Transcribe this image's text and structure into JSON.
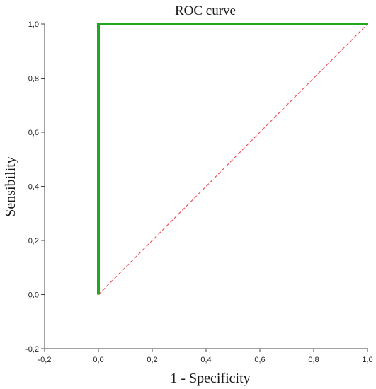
{
  "chart_data": {
    "type": "line",
    "title": "ROC curve",
    "xlabel": "1 - Specificity",
    "ylabel": "Sensibility",
    "xlim": [
      -0.2,
      1.0
    ],
    "ylim": [
      -0.2,
      1.0
    ],
    "x_ticks": [
      -0.2,
      0.0,
      0.2,
      0.4,
      0.6,
      0.8,
      1.0
    ],
    "y_ticks": [
      -0.2,
      0.0,
      0.2,
      0.4,
      0.6,
      0.8,
      1.0
    ],
    "x_tick_labels": [
      "-0,2",
      "0,0",
      "0,2",
      "0,4",
      "0,6",
      "0,8",
      "1,0"
    ],
    "y_tick_labels": [
      "-0,2",
      "0,0",
      "0,2",
      "0,4",
      "0,6",
      "0,8",
      "1,0"
    ],
    "grid": false,
    "series": [
      {
        "style": "solid",
        "color": "#1fa81f",
        "x": [
          0.0,
          0.0,
          1.0
        ],
        "y": [
          0.0,
          1.0,
          1.0
        ]
      },
      {
        "style": "dashed",
        "color": "#e8535a",
        "x": [
          0.0,
          1.0
        ],
        "y": [
          0.0,
          1.0
        ]
      }
    ]
  }
}
